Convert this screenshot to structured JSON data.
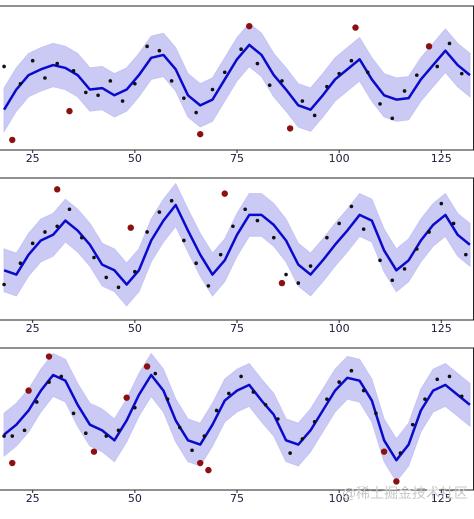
{
  "chart_data": [
    {
      "type": "line",
      "xlim": [
        17,
        133
      ],
      "ylim": [
        0,
        10
      ],
      "xticks": [
        25,
        50,
        75,
        100,
        125
      ],
      "line_color": "#0a0acd",
      "band_color": "#c4c4f4",
      "point_color": "#111111",
      "outlier_color": "#8b1010",
      "x": [
        18,
        21,
        24,
        27,
        30,
        33,
        36,
        39,
        42,
        45,
        48,
        51,
        54,
        57,
        60,
        63,
        66,
        69,
        72,
        75,
        78,
        81,
        84,
        87,
        90,
        93,
        96,
        99,
        102,
        105,
        108,
        111,
        114,
        117,
        120,
        123,
        126,
        129,
        132
      ],
      "values": [
        2.8,
        4.2,
        5.2,
        5.6,
        5.9,
        5.7,
        5.2,
        4.2,
        4.3,
        3.8,
        4.2,
        5.2,
        6.4,
        6.6,
        5.6,
        3.8,
        3.1,
        3.5,
        4.9,
        6.3,
        7.3,
        6.6,
        5.2,
        4.2,
        3.1,
        2.8,
        3.8,
        4.9,
        5.6,
        6.3,
        4.9,
        3.8,
        3.5,
        3.6,
        4.9,
        5.9,
        6.9,
        5.9,
        5.2
      ],
      "band_lower": [
        1.3,
        2.7,
        3.7,
        4.1,
        4.4,
        4.2,
        3.7,
        2.7,
        2.8,
        2.3,
        2.7,
        3.7,
        4.9,
        5.1,
        4.1,
        2.3,
        1.6,
        2.0,
        3.4,
        4.8,
        5.8,
        5.1,
        3.7,
        2.7,
        1.6,
        1.3,
        2.3,
        3.4,
        4.1,
        4.8,
        3.4,
        2.3,
        2.0,
        2.1,
        3.4,
        4.4,
        5.4,
        4.4,
        3.7
      ],
      "band_upper": [
        4.3,
        5.7,
        6.7,
        7.1,
        7.4,
        7.2,
        6.7,
        5.7,
        5.8,
        5.3,
        5.7,
        6.7,
        7.9,
        8.1,
        7.1,
        5.3,
        4.6,
        5.0,
        6.4,
        7.8,
        8.8,
        8.1,
        6.7,
        5.7,
        4.6,
        4.3,
        5.3,
        6.4,
        7.1,
        7.8,
        6.4,
        5.3,
        5.0,
        5.1,
        6.4,
        7.4,
        8.4,
        7.4,
        6.7
      ],
      "points": {
        "x": [
          18,
          22,
          25,
          28,
          31,
          35,
          38,
          41,
          44,
          47,
          50,
          53,
          56,
          59,
          62,
          65,
          69,
          72,
          76,
          80,
          83,
          86,
          91,
          94,
          97,
          100,
          103,
          107,
          110,
          113,
          116,
          119,
          124,
          127,
          130
        ],
        "y": [
          5.8,
          4.6,
          6.2,
          5.0,
          6.0,
          5.5,
          4.0,
          3.8,
          4.8,
          3.4,
          4.6,
          7.2,
          6.9,
          4.8,
          3.6,
          2.6,
          4.2,
          5.4,
          7.0,
          6.0,
          4.5,
          4.8,
          3.4,
          2.4,
          4.4,
          5.3,
          6.2,
          5.4,
          3.2,
          2.2,
          4.1,
          5.2,
          5.8,
          7.4,
          5.3
        ]
      },
      "outliers": {
        "x": [
          20,
          34,
          66,
          78,
          88,
          104,
          122
        ],
        "y": [
          0.7,
          2.7,
          1.1,
          8.6,
          1.5,
          8.5,
          7.2
        ]
      }
    },
    {
      "type": "line",
      "xlim": [
        17,
        133
      ],
      "ylim": [
        0,
        10
      ],
      "xticks": [
        25,
        50,
        75,
        100,
        125
      ],
      "line_color": "#0a0acd",
      "band_color": "#c4c4f4",
      "point_color": "#111111",
      "outlier_color": "#8b1010",
      "x": [
        18,
        21,
        24,
        27,
        30,
        33,
        36,
        39,
        42,
        45,
        48,
        51,
        54,
        57,
        60,
        63,
        66,
        69,
        72,
        75,
        78,
        81,
        84,
        87,
        90,
        93,
        96,
        99,
        102,
        105,
        108,
        111,
        114,
        117,
        120,
        123,
        126,
        129,
        132
      ],
      "values": [
        3.5,
        3.2,
        4.6,
        5.6,
        6.0,
        7.0,
        6.3,
        5.3,
        3.9,
        3.5,
        2.5,
        3.5,
        5.6,
        7.0,
        8.1,
        6.3,
        4.6,
        3.2,
        4.2,
        6.0,
        7.4,
        7.4,
        6.7,
        5.6,
        3.9,
        3.2,
        4.2,
        5.3,
        6.3,
        7.4,
        7.0,
        4.9,
        3.5,
        4.2,
        5.6,
        6.7,
        7.4,
        6.0,
        5.3
      ],
      "band_lower": [
        2.0,
        1.7,
        3.1,
        4.1,
        4.5,
        5.5,
        4.8,
        3.8,
        2.4,
        2.0,
        1.0,
        2.0,
        4.1,
        5.5,
        6.6,
        4.8,
        3.1,
        1.7,
        2.7,
        4.5,
        5.9,
        5.9,
        5.2,
        4.1,
        2.4,
        1.7,
        2.7,
        3.8,
        4.8,
        5.9,
        5.5,
        3.4,
        2.0,
        2.7,
        4.1,
        5.2,
        5.9,
        4.5,
        3.8
      ],
      "band_upper": [
        5.0,
        4.7,
        6.1,
        7.1,
        7.5,
        8.5,
        7.8,
        6.8,
        5.4,
        5.0,
        4.0,
        5.0,
        7.1,
        8.5,
        9.6,
        7.8,
        6.1,
        4.7,
        5.7,
        7.5,
        8.9,
        8.9,
        8.2,
        7.1,
        5.4,
        4.7,
        5.7,
        6.8,
        7.8,
        8.9,
        8.5,
        6.4,
        5.0,
        5.7,
        7.1,
        8.2,
        8.9,
        7.5,
        6.8
      ],
      "points": {
        "x": [
          18,
          22,
          25,
          28,
          31,
          34,
          37,
          40,
          43,
          46,
          50,
          53,
          56,
          59,
          62,
          65,
          68,
          71,
          74,
          77,
          80,
          84,
          87,
          90,
          93,
          97,
          100,
          103,
          106,
          110,
          113,
          116,
          119,
          122,
          125,
          128,
          131
        ],
        "y": [
          2.5,
          4.0,
          5.4,
          6.2,
          6.6,
          7.8,
          5.8,
          4.4,
          3.0,
          2.3,
          3.4,
          6.2,
          7.6,
          8.4,
          5.6,
          4.0,
          2.4,
          4.6,
          6.6,
          7.8,
          7.0,
          5.8,
          3.2,
          2.6,
          3.8,
          5.8,
          6.8,
          8.0,
          6.4,
          4.2,
          2.8,
          3.6,
          5.0,
          6.2,
          8.2,
          6.8,
          4.6
        ]
      },
      "outliers": {
        "x": [
          31,
          49,
          72,
          86
        ],
        "y": [
          9.2,
          6.5,
          8.9,
          2.6
        ]
      }
    },
    {
      "type": "line",
      "xlim": [
        17,
        133
      ],
      "ylim": [
        0,
        10
      ],
      "xticks": [
        25,
        50,
        75,
        100,
        125
      ],
      "line_color": "#0a0acd",
      "band_color": "#c4c4f4",
      "point_color": "#111111",
      "outlier_color": "#8b1010",
      "x": [
        18,
        21,
        24,
        27,
        30,
        33,
        36,
        39,
        42,
        45,
        48,
        51,
        54,
        57,
        60,
        63,
        66,
        69,
        72,
        75,
        78,
        81,
        84,
        87,
        90,
        93,
        96,
        99,
        102,
        105,
        108,
        111,
        114,
        117,
        120,
        123,
        126,
        129,
        132
      ],
      "values": [
        3.9,
        4.6,
        5.6,
        7.0,
        8.1,
        7.7,
        6.0,
        4.6,
        4.2,
        3.5,
        4.9,
        6.7,
        8.1,
        7.0,
        4.9,
        3.5,
        3.2,
        4.6,
        6.3,
        7.0,
        7.4,
        6.3,
        5.3,
        3.5,
        3.2,
        4.2,
        5.6,
        7.0,
        7.9,
        7.7,
        6.3,
        3.5,
        2.1,
        3.2,
        5.6,
        7.0,
        7.4,
        6.7,
        6.0
      ],
      "band_lower": [
        2.4,
        3.1,
        4.1,
        5.5,
        6.6,
        6.2,
        4.5,
        3.1,
        2.7,
        2.0,
        3.4,
        5.2,
        6.6,
        5.5,
        3.4,
        2.0,
        1.7,
        3.1,
        4.8,
        5.5,
        5.9,
        4.8,
        3.8,
        2.0,
        1.7,
        2.7,
        4.1,
        5.5,
        6.4,
        6.2,
        4.8,
        2.0,
        0.6,
        1.7,
        4.1,
        5.5,
        5.9,
        5.2,
        4.5
      ],
      "band_upper": [
        5.4,
        6.1,
        7.1,
        8.5,
        9.6,
        9.2,
        7.5,
        6.1,
        5.7,
        5.0,
        6.4,
        8.2,
        9.6,
        8.5,
        6.4,
        5.0,
        4.7,
        6.1,
        7.8,
        8.5,
        8.9,
        7.8,
        6.8,
        5.0,
        4.7,
        5.7,
        7.1,
        8.5,
        9.4,
        9.2,
        7.8,
        5.0,
        3.6,
        4.7,
        7.1,
        8.5,
        8.9,
        8.2,
        7.5
      ],
      "points": {
        "x": [
          18,
          20,
          23,
          26,
          29,
          32,
          35,
          38,
          43,
          46,
          50,
          55,
          58,
          61,
          64,
          67,
          70,
          73,
          76,
          79,
          82,
          85,
          88,
          91,
          94,
          97,
          100,
          103,
          106,
          109,
          115,
          118,
          121,
          124,
          127,
          130
        ],
        "y": [
          3.8,
          3.8,
          4.2,
          6.2,
          7.6,
          8.0,
          5.4,
          4.0,
          3.8,
          4.2,
          5.8,
          8.2,
          6.4,
          4.4,
          2.8,
          3.8,
          5.6,
          6.8,
          8.0,
          6.9,
          6.0,
          5.0,
          2.6,
          3.6,
          4.8,
          6.4,
          7.6,
          8.4,
          7.0,
          5.4,
          2.6,
          4.6,
          6.4,
          7.8,
          8.0,
          6.6
        ]
      },
      "outliers": {
        "x": [
          20,
          24,
          29,
          40,
          48,
          53,
          66,
          68,
          111,
          114
        ],
        "y": [
          1.9,
          7.0,
          9.4,
          2.7,
          6.5,
          8.7,
          1.9,
          1.4,
          2.7,
          0.6
        ]
      }
    }
  ],
  "watermark": "@稀土掘金技术社区"
}
